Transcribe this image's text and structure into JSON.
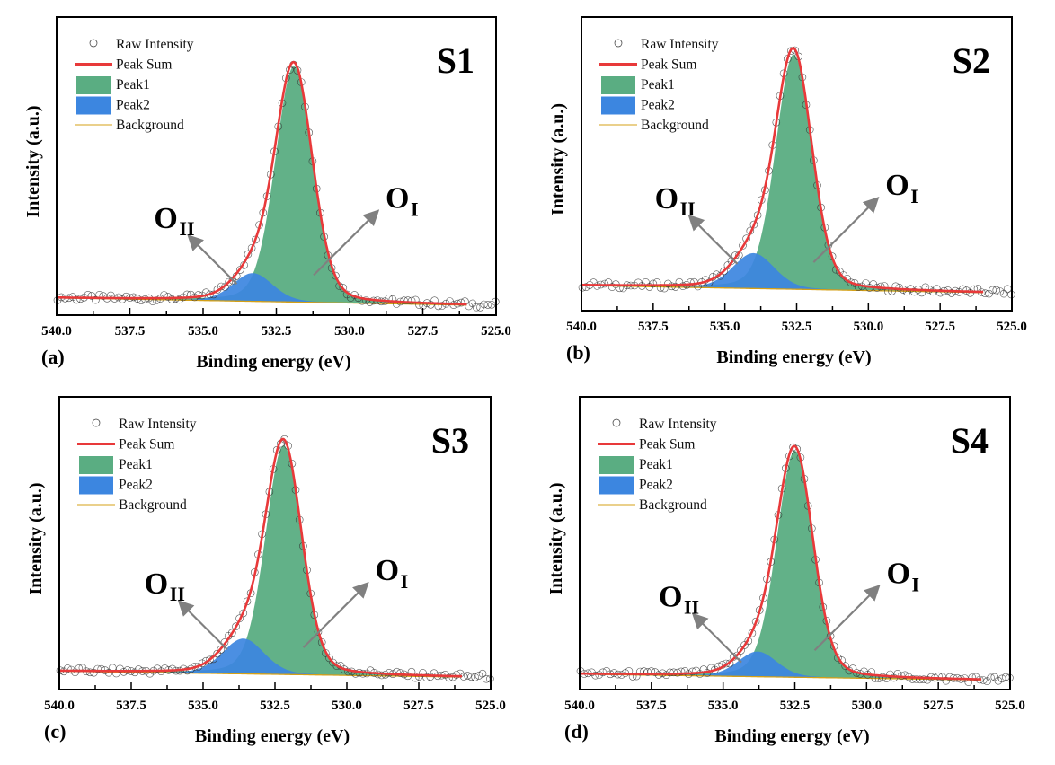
{
  "colors": {
    "raw": "#333333",
    "peak_sum": "#e8393a",
    "peak1": "#5aad82",
    "peak2": "#3c86e0",
    "background": "#d4a017",
    "arrow": "#808080",
    "frame": "#000000"
  },
  "chart_data": [
    {
      "type": "line",
      "panel": "(a)",
      "sample": "S1",
      "xlabel": "Binding energy (eV)",
      "ylabel": "Intensity (a.u.)",
      "xlim": [
        540.0,
        525.0
      ],
      "x_ticks": [
        "540.0",
        "537.5",
        "535.0",
        "532.5",
        "530.0",
        "527.5",
        "525.0"
      ],
      "y_ticks": [],
      "legend": [
        "Raw Intensity",
        "Peak Sum",
        "Peak1",
        "Peak2",
        "Background"
      ],
      "legend_position": "top-left",
      "annotations": [
        {
          "main": "O",
          "sub": "II",
          "points_to": "Peak2"
        },
        {
          "main": "O",
          "sub": "I",
          "points_to": "Peak1"
        }
      ],
      "series": [
        {
          "name": "Peak1",
          "center_eV": 531.9,
          "height": 0.92,
          "fwhm_eV": 1.5
        },
        {
          "name": "Peak2",
          "center_eV": 533.3,
          "height": 0.11,
          "fwhm_eV": 1.6
        },
        {
          "name": "Background",
          "start": 0.015,
          "end": -0.015
        }
      ]
    },
    {
      "type": "line",
      "panel": "(b)",
      "sample": "S2",
      "xlabel": "Binding energy (eV)",
      "ylabel": "Intensity (a.u.)",
      "xlim": [
        540.0,
        525.0
      ],
      "x_ticks": [
        "540.0",
        "537.5",
        "535.0",
        "532.5",
        "530.0",
        "527.5",
        "525.0"
      ],
      "y_ticks": [],
      "legend": [
        "Raw Intensity",
        "Peak Sum",
        "Peak1",
        "Peak2",
        "Background"
      ],
      "legend_position": "top-left",
      "annotations": [
        {
          "main": "O",
          "sub": "II",
          "points_to": "Peak2"
        },
        {
          "main": "O",
          "sub": "I",
          "points_to": "Peak1"
        }
      ],
      "series": [
        {
          "name": "Peak1",
          "center_eV": 532.6,
          "height": 0.93,
          "fwhm_eV": 1.5
        },
        {
          "name": "Peak2",
          "center_eV": 534.0,
          "height": 0.14,
          "fwhm_eV": 1.7
        },
        {
          "name": "Background",
          "start": 0.03,
          "end": 0.0
        }
      ]
    },
    {
      "type": "line",
      "panel": "(c)",
      "sample": "S3",
      "xlabel": "Binding energy (eV)",
      "ylabel": "Intensity (a.u.)",
      "xlim": [
        540.0,
        525.0
      ],
      "x_ticks": [
        "540.0",
        "537.5",
        "535.0",
        "532.5",
        "530.0",
        "527.5",
        "525.0"
      ],
      "y_ticks": [],
      "legend": [
        "Raw Intensity",
        "Peak Sum",
        "Peak1",
        "Peak2",
        "Background"
      ],
      "legend_position": "top-left",
      "annotations": [
        {
          "main": "O",
          "sub": "II",
          "points_to": "Peak2"
        },
        {
          "main": "O",
          "sub": "I",
          "points_to": "Peak1"
        }
      ],
      "series": [
        {
          "name": "Peak1",
          "center_eV": 532.2,
          "height": 0.91,
          "fwhm_eV": 1.5
        },
        {
          "name": "Peak2",
          "center_eV": 533.6,
          "height": 0.14,
          "fwhm_eV": 1.7
        },
        {
          "name": "Background",
          "start": 0.015,
          "end": -0.01
        }
      ]
    },
    {
      "type": "line",
      "panel": "(d)",
      "sample": "S4",
      "xlabel": "Binding energy (eV)",
      "ylabel": "Intensity (a.u.)",
      "xlim": [
        540.0,
        525.0
      ],
      "x_ticks": [
        "540.0",
        "537.5",
        "535.0",
        "532.5",
        "530.0",
        "527.5",
        "525.0"
      ],
      "y_ticks": [],
      "legend": [
        "Raw Intensity",
        "Peak Sum",
        "Peak1",
        "Peak2",
        "Background"
      ],
      "legend_position": "top-left",
      "annotations": [
        {
          "main": "O",
          "sub": "II",
          "points_to": "Peak2"
        },
        {
          "main": "O",
          "sub": "I",
          "points_to": "Peak1"
        }
      ],
      "series": [
        {
          "name": "Peak1",
          "center_eV": 532.5,
          "height": 0.9,
          "fwhm_eV": 1.5
        },
        {
          "name": "Peak2",
          "center_eV": 533.8,
          "height": 0.1,
          "fwhm_eV": 1.6
        },
        {
          "name": "Background",
          "start": 0.015,
          "end": -0.01
        }
      ]
    }
  ]
}
